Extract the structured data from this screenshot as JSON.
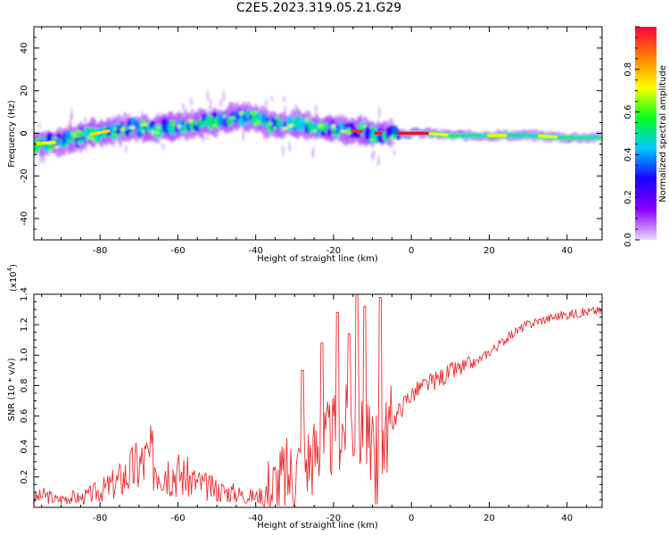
{
  "title": "C2E5.2023.319.05.21.G29",
  "chart_data": [
    {
      "type": "heatmap",
      "xlabel": "Height of straight line (km)",
      "ylabel": "Frequency (Hz)",
      "xlim": [
        -97,
        49
      ],
      "ylim": [
        -50,
        50
      ],
      "x_ticks": [
        -80,
        -60,
        -40,
        -20,
        0,
        20,
        40
      ],
      "y_ticks": [
        -40,
        -20,
        0,
        20,
        40
      ],
      "colorbar": {
        "label": "Normalized spectral amplitude",
        "range": [
          0,
          1
        ],
        "ticks": [
          0.0,
          0.2,
          0.4,
          0.6,
          0.8
        ],
        "colormap": [
          "#e8d8ff",
          "#8a00ff",
          "#1a00ff",
          "#00c8ff",
          "#00ff20",
          "#ffff00",
          "#ff8000",
          "#ff0040"
        ]
      },
      "ridge": {
        "x": [
          -97,
          -90,
          -84,
          -78,
          -72,
          -66,
          -60,
          -54,
          -48,
          -44,
          -40,
          -36,
          -30,
          -24,
          -18,
          -14,
          -10,
          -6,
          -2,
          4,
          10,
          20,
          30,
          40,
          49
        ],
        "y": [
          -5,
          -4,
          -1,
          1,
          3,
          2,
          3,
          5,
          6,
          8,
          7,
          4,
          4,
          3,
          2,
          1,
          0,
          0,
          0,
          0,
          -1,
          -1,
          -1,
          -2,
          -2
        ]
      }
    },
    {
      "type": "line",
      "xlabel": "Height of straight line (km)",
      "ylabel": "SNR (10 * v/v)",
      "y_multiplier": "(x10",
      "y_multiplier_exp": "4",
      "y_multiplier_close": ")",
      "xlim": [
        -97,
        49
      ],
      "ylim": [
        0,
        1.4
      ],
      "x_ticks": [
        -80,
        -60,
        -40,
        -20,
        0,
        20,
        40
      ],
      "y_ticks": [
        0.2,
        0.4,
        0.6,
        0.8,
        1.0,
        1.2,
        1.4
      ],
      "color": "#e83030",
      "series": [
        {
          "x": [
            -97,
            -94,
            -91,
            -88,
            -85,
            -82,
            -79,
            -76,
            -73,
            -70,
            -67,
            -64,
            -61,
            -58,
            -55,
            -52,
            -49,
            -46,
            -43,
            -40,
            -37,
            -34,
            -31,
            -28,
            -25,
            -22,
            -19,
            -16,
            -13,
            -10,
            -7,
            -4,
            -1,
            2,
            5,
            8,
            11,
            14,
            17,
            20,
            23,
            26,
            29,
            32,
            35,
            38,
            41,
            44,
            47,
            49
          ],
          "values": [
            0.06,
            0.08,
            0.05,
            0.07,
            0.06,
            0.09,
            0.12,
            0.16,
            0.22,
            0.28,
            0.32,
            0.28,
            0.24,
            0.2,
            0.16,
            0.13,
            0.11,
            0.1,
            0.08,
            0.07,
            0.1,
            0.16,
            0.22,
            0.3,
            0.35,
            0.42,
            0.5,
            0.55,
            0.48,
            0.42,
            0.46,
            0.6,
            0.72,
            0.78,
            0.82,
            0.86,
            0.9,
            0.92,
            0.96,
            1.02,
            1.08,
            1.14,
            1.19,
            1.22,
            1.24,
            1.26,
            1.27,
            1.28,
            1.29,
            1.29
          ]
        }
      ],
      "peaks": [
        {
          "x": -28,
          "y": 0.9
        },
        {
          "x": -23,
          "y": 1.08
        },
        {
          "x": -19,
          "y": 1.28
        },
        {
          "x": -16,
          "y": 1.14
        },
        {
          "x": -14,
          "y": 1.4
        },
        {
          "x": -12,
          "y": 1.32
        },
        {
          "x": -8,
          "y": 1.38
        }
      ]
    }
  ]
}
